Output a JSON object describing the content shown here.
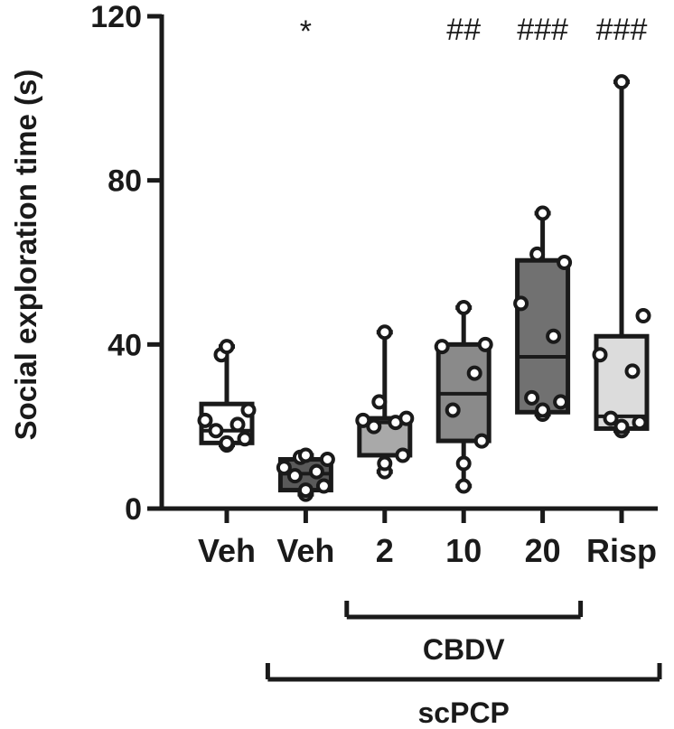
{
  "chart_data": {
    "type": "box",
    "ylabel": "Social exploration time (s)",
    "xlabel": "",
    "ylim": [
      0,
      120
    ],
    "yticks": [
      0,
      40,
      80,
      120
    ],
    "grid": false,
    "categories": [
      "Veh",
      "Veh",
      "2",
      "10",
      "20",
      "Risp"
    ],
    "colors": [
      "#ffffff",
      "#5a5a5a",
      "#a9a9a9",
      "#8a8a8a",
      "#717171",
      "#dcdcdc"
    ],
    "boxes": [
      {
        "min": 15.5,
        "q1": 16,
        "median": 19,
        "q3": 25.5,
        "max": 39.5
      },
      {
        "min": 3.5,
        "q1": 4.5,
        "median": 8.5,
        "q3": 12,
        "max": 13
      },
      {
        "min": 9,
        "q1": 13,
        "median": 21,
        "q3": 22,
        "max": 43
      },
      {
        "min": 5.5,
        "q1": 16.5,
        "median": 28,
        "q3": 40,
        "max": 49
      },
      {
        "min": 23,
        "q1": 23.5,
        "median": 37,
        "q3": 60.5,
        "max": 72
      },
      {
        "min": 19,
        "q1": 19.5,
        "median": 22.5,
        "q3": 42,
        "max": 104
      }
    ],
    "points": [
      [
        15.5,
        16,
        17,
        19,
        20.5,
        21.5,
        24,
        37.5,
        39.5
      ],
      [
        3.5,
        4.5,
        5.5,
        8,
        9,
        10,
        12,
        12.5,
        13
      ],
      [
        9,
        11,
        13,
        20,
        21,
        21.5,
        22,
        26,
        43
      ],
      [
        5.5,
        11,
        16.5,
        24,
        33,
        39.5,
        40,
        49
      ],
      [
        23,
        24,
        26,
        27,
        42,
        50,
        60,
        62,
        72
      ],
      [
        19,
        20,
        21,
        22,
        33.5,
        37.5,
        47,
        104
      ]
    ],
    "significance": [
      "",
      "*",
      "",
      "##",
      "###",
      "###"
    ],
    "group_labels": [
      {
        "label": "CBDV",
        "from": 2,
        "to": 4
      },
      {
        "label": "scPCP",
        "from": 1,
        "to": 5
      }
    ]
  }
}
